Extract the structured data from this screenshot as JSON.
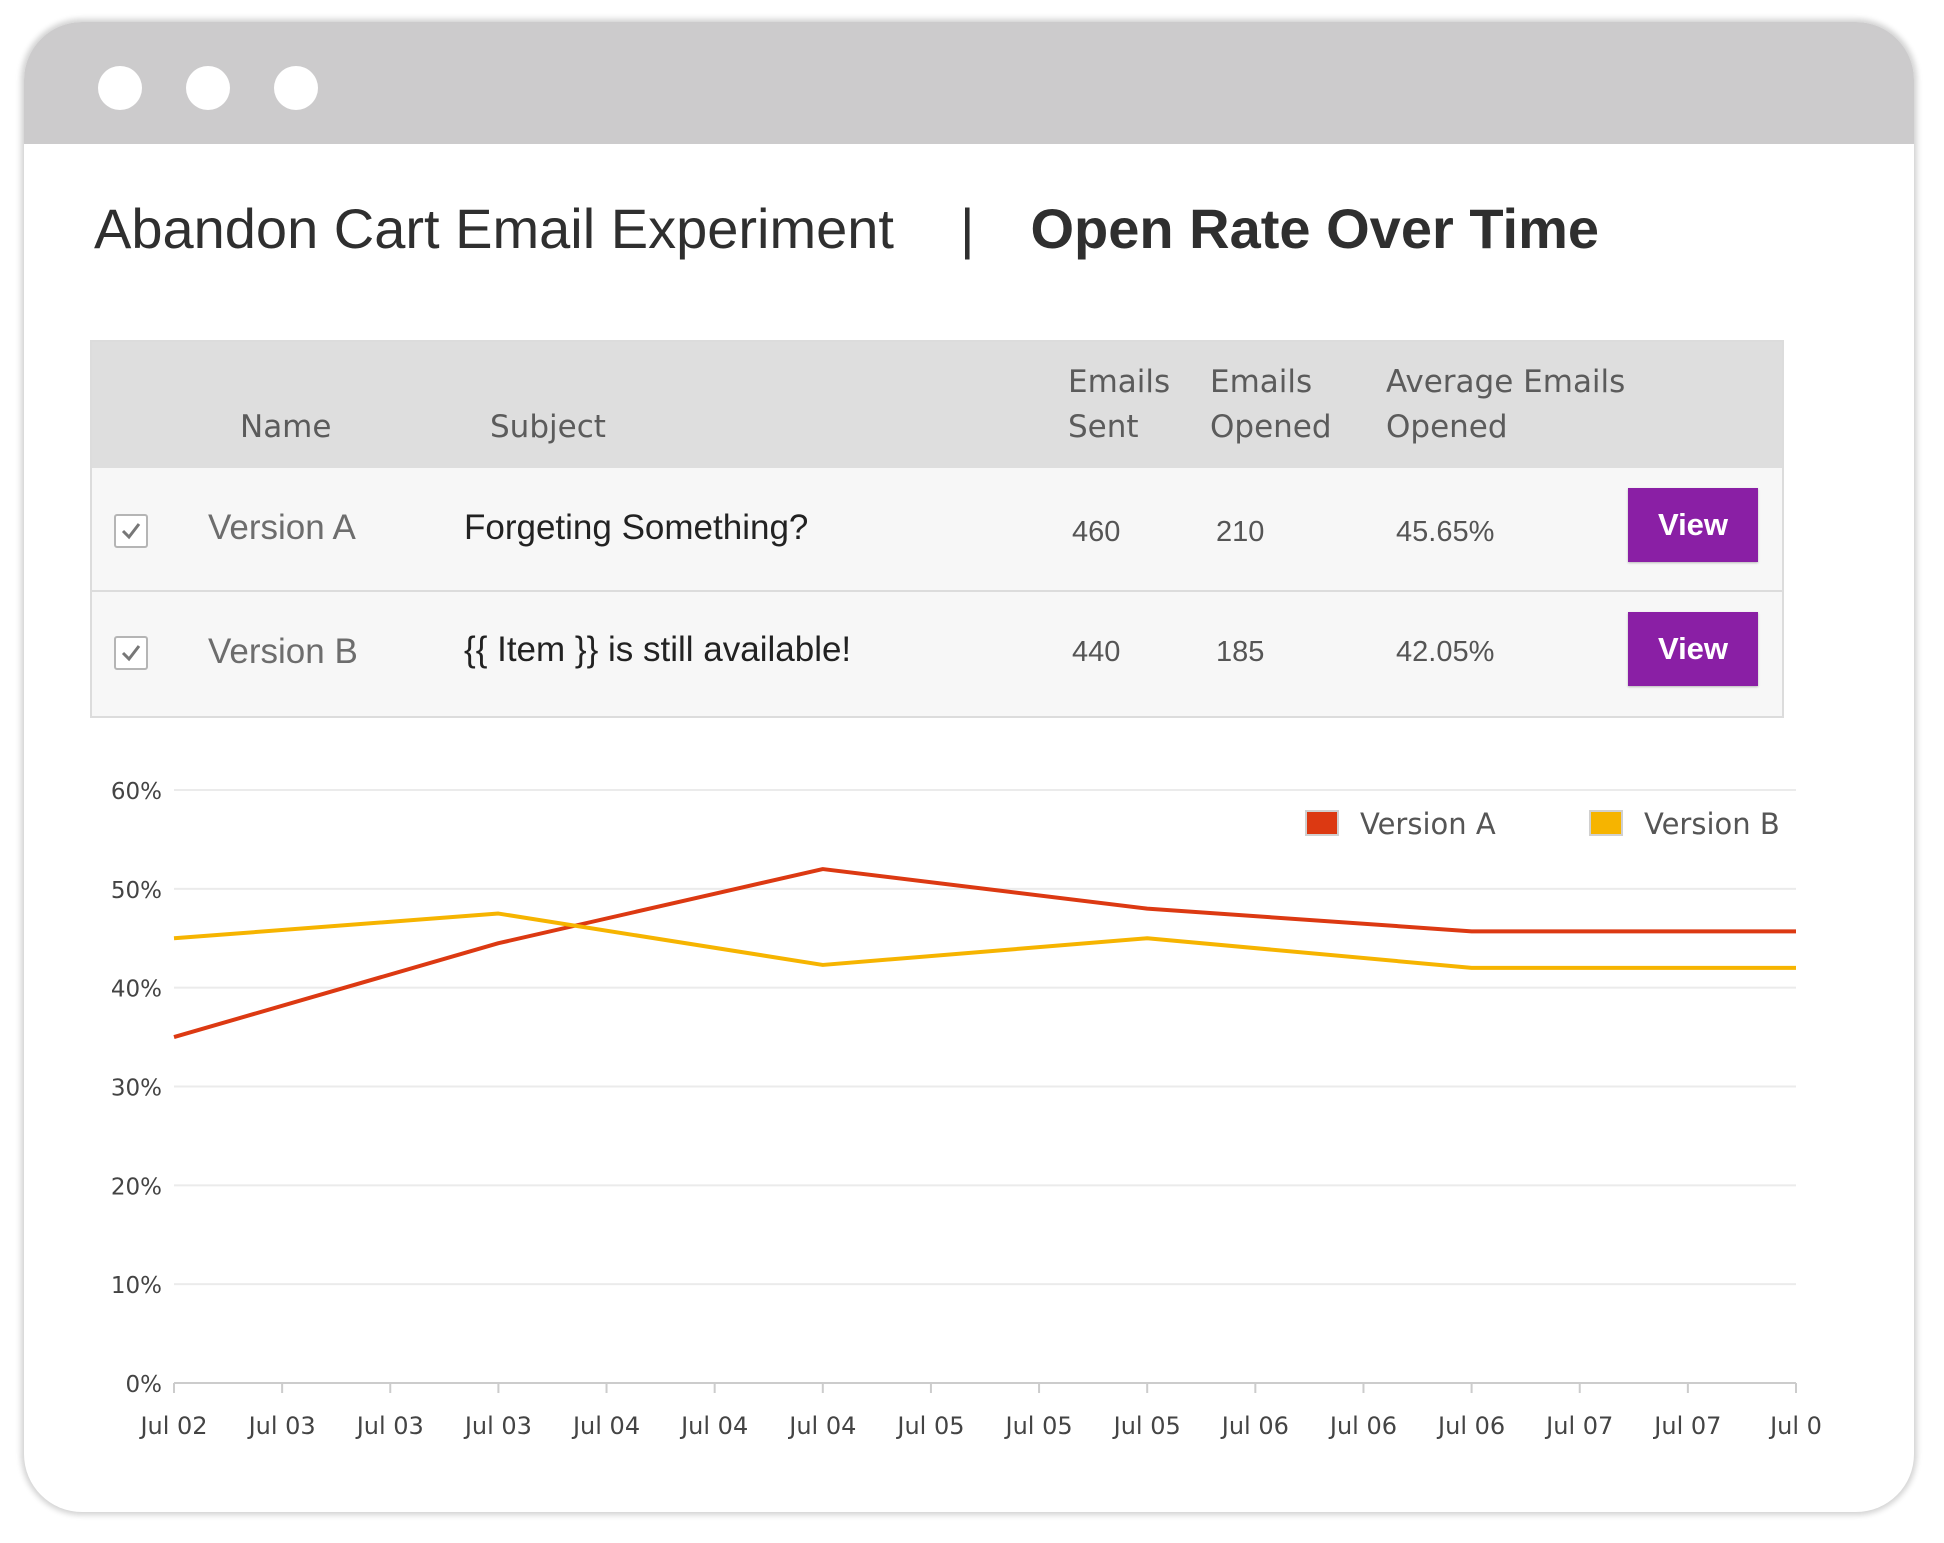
{
  "header": {
    "title": "Abandon Cart Email Experiment",
    "separator": "|",
    "subtitle": "Open Rate Over Time"
  },
  "table": {
    "columns": {
      "name": "Name",
      "subject": "Subject",
      "sent_l1": "Emails",
      "sent_l2": "Sent",
      "opened_l1": "Emails",
      "opened_l2": "Opened",
      "avg_l1": "Average Emails",
      "avg_l2": "Opened"
    },
    "rows": [
      {
        "name": "Version A",
        "subject": "Forgeting Something?",
        "sent": "460",
        "opened": "210",
        "avg": "45.65%",
        "action": "View",
        "checked": true
      },
      {
        "name": "Version B",
        "subject": "{{ Item }} is still available!",
        "sent": "440",
        "opened": "185",
        "avg": "42.05%",
        "action": "View",
        "checked": true
      }
    ]
  },
  "chart_data": {
    "type": "line",
    "categories": [
      "Jul 02",
      "Jul 03",
      "Jul 03",
      "Jul 03",
      "Jul 04",
      "Jul 04",
      "Jul 04",
      "Jul 05",
      "Jul 05",
      "Jul 05",
      "Jul 06",
      "Jul 06",
      "Jul 06",
      "Jul 07",
      "Jul 07",
      "Jul 0"
    ],
    "series": [
      {
        "name": "Version A",
        "color": "#dc3912",
        "values": [
          35,
          null,
          null,
          44.5,
          null,
          null,
          52,
          null,
          null,
          48,
          null,
          null,
          45.7,
          null,
          null,
          45.7
        ]
      },
      {
        "name": "Version B",
        "color": "#f6b400",
        "values": [
          45,
          null,
          null,
          47.5,
          null,
          null,
          42.3,
          null,
          null,
          45,
          null,
          null,
          42,
          null,
          null,
          42
        ]
      }
    ],
    "ylim": [
      0,
      60
    ],
    "yticks": [
      "0%",
      "10%",
      "20%",
      "30%",
      "40%",
      "50%",
      "60%"
    ],
    "ytick_values": [
      0,
      10,
      20,
      30,
      40,
      50,
      60
    ],
    "legend_position": "top-right",
    "grid": true
  }
}
